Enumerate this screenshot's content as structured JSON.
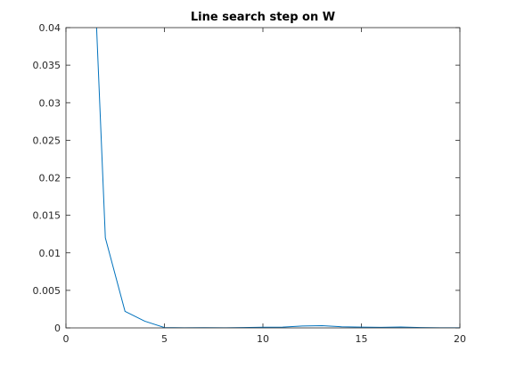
{
  "chart_data": {
    "type": "line",
    "title": "Line search step on W",
    "xlabel": "",
    "ylabel": "",
    "xlim": [
      0,
      20
    ],
    "ylim": [
      0,
      0.04
    ],
    "xticks": [
      0,
      5,
      10,
      15,
      20
    ],
    "xtick_labels": [
      "0",
      "5",
      "10",
      "15",
      "20"
    ],
    "yticks": [
      0,
      0.005,
      0.01,
      0.015,
      0.02,
      0.025,
      0.03,
      0.035,
      0.04
    ],
    "ytick_labels": [
      "0",
      "0.005",
      "0.01",
      "0.015",
      "0.02",
      "0.025",
      "0.03",
      "0.035",
      "0.04"
    ],
    "grid": false,
    "box": true,
    "series": [
      {
        "color": "#0072bd",
        "x": [
          1,
          2,
          3,
          4,
          5,
          6,
          7,
          8,
          9,
          10,
          11,
          12,
          13,
          14,
          15,
          16,
          17,
          18,
          19,
          20
        ],
        "y": [
          0.075,
          0.012,
          0.0022,
          0.0009,
          5e-05,
          2e-05,
          3e-05,
          1e-05,
          5e-05,
          9e-05,
          0.0001,
          0.00025,
          0.0003,
          0.00015,
          0.0001,
          8e-05,
          0.00012,
          5e-05,
          2e-05,
          1e-05
        ]
      }
    ]
  }
}
